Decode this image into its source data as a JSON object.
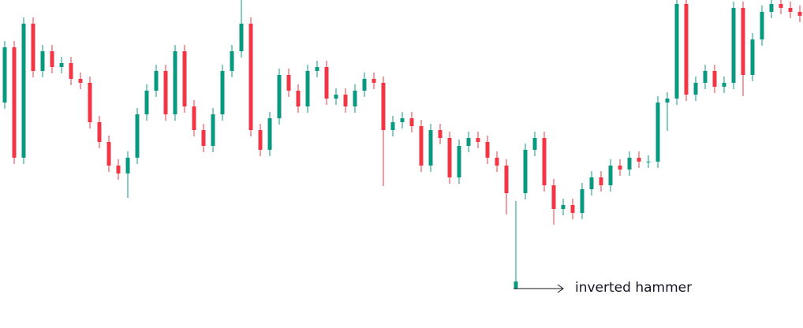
{
  "chart_data": {
    "type": "candlestick",
    "annotation": "inverted hammer",
    "up_color": "#089981",
    "down_color": "#f23645",
    "ylim": [
      0,
      416
    ],
    "series": {
      "open": [
        286,
        356,
        216,
        386,
        326,
        351,
        331,
        336,
        316,
        311,
        261,
        236,
        206,
        196,
        216,
        271,
        301,
        326,
        271,
        351,
        281,
        251,
        231,
        271,
        326,
        351,
        386,
        251,
        226,
        266,
        321,
        301,
        281,
        326,
        331,
        291,
        296,
        281,
        301,
        316,
        311,
        251,
        261,
        266,
        256,
        206,
        251,
        241,
        191,
        231,
        241,
        236,
        216,
        206,
        50,
        171,
        226,
        241,
        181,
        151,
        156,
        146,
        176,
        191,
        181,
        206,
        201,
        216,
        211,
        211,
        286,
        291,
        411,
        296,
        311,
        326,
        306,
        311,
        406,
        321,
        366,
        401,
        411,
        406,
        401
      ],
      "high": [
        364,
        364,
        394,
        394,
        359,
        359,
        344,
        344,
        324,
        319,
        269,
        244,
        214,
        224,
        279,
        309,
        334,
        334,
        359,
        359,
        289,
        259,
        279,
        334,
        359,
        416,
        394,
        259,
        274,
        329,
        329,
        309,
        334,
        339,
        339,
        304,
        304,
        309,
        324,
        324,
        319,
        269,
        274,
        274,
        264,
        259,
        259,
        249,
        239,
        249,
        249,
        244,
        224,
        214,
        161,
        234,
        249,
        249,
        189,
        164,
        164,
        184,
        199,
        199,
        214,
        214,
        224,
        224,
        219,
        294,
        299,
        416,
        416,
        319,
        334,
        334,
        319,
        414,
        414,
        374,
        409,
        416,
        416,
        414,
        409
      ],
      "low": [
        278,
        208,
        208,
        318,
        318,
        323,
        323,
        308,
        303,
        253,
        228,
        198,
        188,
        165,
        208,
        263,
        293,
        263,
        263,
        273,
        243,
        223,
        223,
        263,
        318,
        343,
        243,
        218,
        218,
        258,
        293,
        273,
        273,
        318,
        283,
        283,
        273,
        273,
        293,
        303,
        180,
        243,
        253,
        248,
        198,
        198,
        233,
        183,
        183,
        223,
        228,
        208,
        198,
        144,
        49,
        163,
        218,
        173,
        131,
        143,
        138,
        138,
        168,
        173,
        173,
        193,
        193,
        203,
        203,
        203,
        250,
        283,
        288,
        288,
        303,
        298,
        298,
        303,
        294,
        313,
        358,
        393,
        398,
        393,
        388
      ],
      "close": [
        356,
        216,
        386,
        326,
        351,
        331,
        336,
        316,
        311,
        261,
        236,
        206,
        196,
        216,
        271,
        301,
        326,
        271,
        351,
        281,
        251,
        231,
        271,
        326,
        351,
        386,
        251,
        226,
        266,
        321,
        301,
        281,
        326,
        331,
        291,
        296,
        281,
        301,
        316,
        311,
        251,
        261,
        266,
        256,
        206,
        251,
        241,
        191,
        231,
        241,
        236,
        216,
        206,
        171,
        59,
        226,
        241,
        181,
        151,
        156,
        146,
        176,
        191,
        181,
        206,
        201,
        216,
        211,
        211,
        286,
        291,
        411,
        296,
        311,
        326,
        306,
        311,
        406,
        321,
        366,
        401,
        411,
        406,
        401,
        396
      ]
    }
  }
}
